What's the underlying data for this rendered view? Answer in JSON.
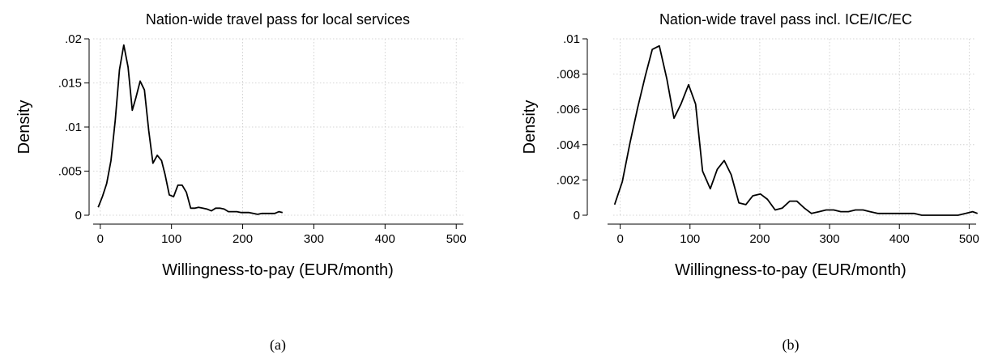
{
  "chart_data": [
    {
      "type": "line",
      "title": "Nation-wide travel pass for local services",
      "xlabel": "Willingness-to-pay (EUR/month)",
      "ylabel": "Density",
      "xlim": [
        -10,
        510
      ],
      "ylim": [
        0,
        0.02
      ],
      "x_ticks": [
        0,
        100,
        200,
        300,
        400,
        500
      ],
      "x_tick_labels": [
        "0",
        "100",
        "200",
        "300",
        "400",
        "500"
      ],
      "y_ticks": [
        0,
        0.005,
        0.01,
        0.015,
        0.02
      ],
      "y_tick_labels": [
        "0",
        ".005",
        ".01",
        ".015",
        ".02"
      ],
      "grid": true,
      "caption": "(a)",
      "series": [
        {
          "color": "#000000",
          "x": [
            -3,
            3,
            9,
            15,
            21,
            27,
            33,
            39,
            45,
            50,
            56,
            62,
            68,
            74,
            80,
            86,
            91,
            97,
            103,
            109,
            115,
            121,
            127,
            133,
            138,
            144,
            150,
            156,
            162,
            168,
            174,
            180,
            186,
            192,
            198,
            203,
            209,
            215,
            221,
            227,
            233,
            239,
            245,
            251,
            256
          ],
          "y": [
            0.0009,
            0.0021,
            0.0036,
            0.0062,
            0.0107,
            0.0165,
            0.0193,
            0.0168,
            0.0119,
            0.0133,
            0.0152,
            0.0142,
            0.0096,
            0.0059,
            0.0068,
            0.0062,
            0.0046,
            0.0023,
            0.0021,
            0.0034,
            0.0034,
            0.0026,
            0.0008,
            0.0008,
            0.0009,
            0.0008,
            0.0007,
            0.0005,
            0.0008,
            0.0008,
            0.0007,
            0.0004,
            0.0004,
            0.0004,
            0.0003,
            0.0003,
            0.0003,
            0.0002,
            0.0001,
            0.0002,
            0.0002,
            0.0002,
            0.0002,
            0.0004,
            0.0003
          ]
        }
      ]
    },
    {
      "type": "line",
      "title": "Nation-wide travel pass incl. ICE/IC/EC",
      "xlabel": "Willingness-to-pay (EUR/month)",
      "ylabel": "Density",
      "xlim": [
        -10,
        510
      ],
      "ylim": [
        0,
        0.01
      ],
      "x_ticks": [
        0,
        100,
        200,
        300,
        400,
        500
      ],
      "x_tick_labels": [
        "0",
        "100",
        "200",
        "300",
        "400",
        "500"
      ],
      "y_ticks": [
        0,
        0.002,
        0.004,
        0.006,
        0.008,
        0.01
      ],
      "y_tick_labels": [
        "0",
        ".002",
        ".004",
        ".006",
        ".008",
        ".01"
      ],
      "grid": true,
      "caption": "(b)",
      "series": [
        {
          "color": "#000000",
          "x": [
            -8,
            3,
            14,
            25,
            36,
            46,
            56,
            67,
            77,
            87,
            98,
            108,
            118,
            129,
            139,
            149,
            159,
            170,
            180,
            190,
            201,
            211,
            222,
            232,
            243,
            253,
            264,
            274,
            285,
            295,
            306,
            316,
            327,
            337,
            348,
            358,
            369,
            379,
            390,
            400,
            411,
            421,
            432,
            442,
            453,
            463,
            474,
            484,
            495,
            505,
            512
          ],
          "y": [
            0.0006,
            0.0019,
            0.0041,
            0.0061,
            0.0079,
            0.0094,
            0.0096,
            0.0077,
            0.0055,
            0.0063,
            0.0074,
            0.0063,
            0.0025,
            0.0015,
            0.0026,
            0.0031,
            0.0023,
            0.0007,
            0.0006,
            0.0011,
            0.0012,
            0.0009,
            0.0003,
            0.0004,
            0.0008,
            0.0008,
            0.0004,
            0.0001,
            0.0002,
            0.0003,
            0.0003,
            0.0002,
            0.0002,
            0.0003,
            0.0003,
            0.0002,
            0.0001,
            0.0001,
            0.0001,
            0.0001,
            0.0001,
            0.0001,
            0.0,
            0.0,
            0.0,
            0.0,
            0.0,
            0.0,
            0.0001,
            0.0002,
            0.0001
          ]
        }
      ]
    }
  ]
}
